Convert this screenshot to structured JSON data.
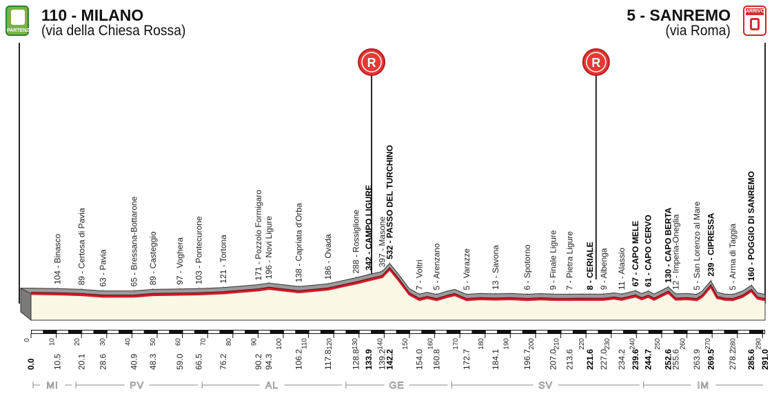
{
  "start": {
    "title": "110 - MILANO",
    "subtitle": "(via della Chiesa Rossa)",
    "badge_label": "PARTENZA"
  },
  "finish": {
    "title": "5 - SANREMO",
    "subtitle": "(via Roma)",
    "badge_label": "ARRIVO"
  },
  "refreshment_label": "R",
  "refreshments_km": [
    135,
    224
  ],
  "total_km": 291.0,
  "km_ticks": [
    0,
    10,
    20,
    30,
    40,
    50,
    60,
    70,
    80,
    90,
    100,
    110,
    120,
    130,
    140,
    150,
    160,
    170,
    180,
    190,
    200,
    210,
    220,
    230,
    240,
    250,
    260,
    270,
    280,
    290
  ],
  "places": [
    {
      "km": 10.5,
      "text": "104 - Binasco",
      "bold": false
    },
    {
      "km": 20.1,
      "text": "89 - Certosa di Pavia",
      "bold": false
    },
    {
      "km": 28.6,
      "text": "63 - Pavia",
      "bold": false
    },
    {
      "km": 40.9,
      "text": "65 - Bressana-Bottarone",
      "bold": false
    },
    {
      "km": 48.3,
      "text": "89 - Casteggio",
      "bold": false
    },
    {
      "km": 59.0,
      "text": "97 - Voghera",
      "bold": false
    },
    {
      "km": 66.5,
      "text": "103 - Pontecurone",
      "bold": false
    },
    {
      "km": 76.2,
      "text": "121 - Tortona",
      "bold": false
    },
    {
      "km": 90.2,
      "text": "171 - Pozzolo Formigaro",
      "bold": false
    },
    {
      "km": 94.3,
      "text": "196 - Novi Ligure",
      "bold": false
    },
    {
      "km": 106.2,
      "text": "138 - Capriata d'Orba",
      "bold": false
    },
    {
      "km": 117.8,
      "text": "186 - Ovada",
      "bold": false
    },
    {
      "km": 128.8,
      "text": "288 - Rossiglione",
      "bold": false
    },
    {
      "km": 133.9,
      "text": "342 - CAMPO LIGURE",
      "bold": true
    },
    {
      "km": 139.2,
      "text": "397 - Masone",
      "bold": false
    },
    {
      "km": 142.2,
      "text": "532 - PASSO DEL TURCHINO",
      "bold": true
    },
    {
      "km": 154.0,
      "text": "7 - Voltri",
      "bold": false
    },
    {
      "km": 160.8,
      "text": "5 - Arenzano",
      "bold": false
    },
    {
      "km": 172.7,
      "text": "5 - Varazze",
      "bold": false
    },
    {
      "km": 184.1,
      "text": "13 - Savona",
      "bold": false
    },
    {
      "km": 196.7,
      "text": "6 - Spotorno",
      "bold": false
    },
    {
      "km": 207.0,
      "text": "9 - Finale Ligure",
      "bold": false
    },
    {
      "km": 213.6,
      "text": "7 - Pietra Ligure",
      "bold": false
    },
    {
      "km": 221.6,
      "text": "8 - CERIALE",
      "bold": true
    },
    {
      "km": 227.0,
      "text": "9 - Albenga",
      "bold": false
    },
    {
      "km": 234.2,
      "text": "11 - Alassio",
      "bold": false
    },
    {
      "km": 239.6,
      "text": "67 - CAPO MELE",
      "bold": true
    },
    {
      "km": 244.7,
      "text": "61 - CAPO CERVO",
      "bold": true
    },
    {
      "km": 252.6,
      "text": "130 - CAPO BERTA",
      "bold": true
    },
    {
      "km": 255.6,
      "text": "12 - Imperia-Oneglia",
      "bold": false
    },
    {
      "km": 263.9,
      "text": "5 - San Lorenzo al Mare",
      "bold": false
    },
    {
      "km": 269.5,
      "text": "239 - CIPRESSA",
      "bold": true
    },
    {
      "km": 278.2,
      "text": "5 - Arma di Taggia",
      "bold": false
    },
    {
      "km": 285.6,
      "text": "160 - POGGIO DI SANREMO",
      "bold": true
    }
  ],
  "distances": [
    {
      "text": "0.0",
      "km": 0,
      "bold": true
    },
    {
      "text": "10.5",
      "km": 10.5,
      "bold": false
    },
    {
      "text": "20.1",
      "km": 20.1,
      "bold": false
    },
    {
      "text": "28.6",
      "km": 28.6,
      "bold": false
    },
    {
      "text": "40.9",
      "km": 40.9,
      "bold": false
    },
    {
      "text": "48.3",
      "km": 48.3,
      "bold": false
    },
    {
      "text": "59.0",
      "km": 59.0,
      "bold": false
    },
    {
      "text": "66.5",
      "km": 66.5,
      "bold": false
    },
    {
      "text": "76.2",
      "km": 76.2,
      "bold": false
    },
    {
      "text": "90.2",
      "km": 90.2,
      "bold": false
    },
    {
      "text": "94.3",
      "km": 94.3,
      "bold": false
    },
    {
      "text": "106.2",
      "km": 106.2,
      "bold": false
    },
    {
      "text": "117.8",
      "km": 117.8,
      "bold": false
    },
    {
      "text": "128.8",
      "km": 128.8,
      "bold": false
    },
    {
      "text": "133.9",
      "km": 133.9,
      "bold": true
    },
    {
      "text": "139.2",
      "km": 139.2,
      "bold": false
    },
    {
      "text": "142.2",
      "km": 142.2,
      "bold": true
    },
    {
      "text": "154.0",
      "km": 154.0,
      "bold": false
    },
    {
      "text": "160.8",
      "km": 160.8,
      "bold": false
    },
    {
      "text": "172.7",
      "km": 172.7,
      "bold": false
    },
    {
      "text": "184.1",
      "km": 184.1,
      "bold": false
    },
    {
      "text": "196.7",
      "km": 196.7,
      "bold": false
    },
    {
      "text": "207.0",
      "km": 207.0,
      "bold": false
    },
    {
      "text": "213.6",
      "km": 213.6,
      "bold": false
    },
    {
      "text": "221.6",
      "km": 221.6,
      "bold": true
    },
    {
      "text": "227.0",
      "km": 227.0,
      "bold": false
    },
    {
      "text": "234.2",
      "km": 234.2,
      "bold": false
    },
    {
      "text": "239.6",
      "km": 239.6,
      "bold": true
    },
    {
      "text": "244.7",
      "km": 244.7,
      "bold": true
    },
    {
      "text": "252.6",
      "km": 252.6,
      "bold": true
    },
    {
      "text": "255.6",
      "km": 255.6,
      "bold": false
    },
    {
      "text": "263.9",
      "km": 263.9,
      "bold": false
    },
    {
      "text": "269.5",
      "km": 269.5,
      "bold": true
    },
    {
      "text": "278.2",
      "km": 278.2,
      "bold": false
    },
    {
      "text": "285.6",
      "km": 285.6,
      "bold": true
    },
    {
      "text": "291.0",
      "km": 291.0,
      "bold": true
    }
  ],
  "provinces": [
    {
      "code": "MI",
      "from": 0,
      "to": 17
    },
    {
      "code": "PV",
      "from": 17,
      "to": 67
    },
    {
      "code": "AL",
      "from": 67,
      "to": 124
    },
    {
      "code": "GE",
      "from": 124,
      "to": 166
    },
    {
      "code": "SV",
      "from": 166,
      "to": 242
    },
    {
      "code": "IM",
      "from": 242,
      "to": 291
    }
  ],
  "elevation_profile_km_m": [
    [
      0,
      110
    ],
    [
      10.5,
      104
    ],
    [
      20.1,
      89
    ],
    [
      28.6,
      63
    ],
    [
      40.9,
      65
    ],
    [
      48.3,
      89
    ],
    [
      59,
      97
    ],
    [
      66.5,
      103
    ],
    [
      76.2,
      121
    ],
    [
      90.2,
      171
    ],
    [
      94.3,
      196
    ],
    [
      106.2,
      138
    ],
    [
      117.8,
      186
    ],
    [
      128.8,
      288
    ],
    [
      133.9,
      342
    ],
    [
      139.2,
      397
    ],
    [
      142.2,
      532
    ],
    [
      146,
      330
    ],
    [
      150,
      100
    ],
    [
      154,
      7
    ],
    [
      157,
      40
    ],
    [
      160.8,
      5
    ],
    [
      165,
      60
    ],
    [
      168,
      90
    ],
    [
      172.7,
      5
    ],
    [
      178,
      20
    ],
    [
      184.1,
      13
    ],
    [
      190,
      20
    ],
    [
      196.7,
      6
    ],
    [
      202,
      18
    ],
    [
      207,
      9
    ],
    [
      213.6,
      7
    ],
    [
      218,
      10
    ],
    [
      221.6,
      8
    ],
    [
      227,
      9
    ],
    [
      231,
      30
    ],
    [
      234.2,
      11
    ],
    [
      239.6,
      67
    ],
    [
      242,
      20
    ],
    [
      244.7,
      61
    ],
    [
      247,
      10
    ],
    [
      252.6,
      130
    ],
    [
      255.6,
      12
    ],
    [
      260,
      20
    ],
    [
      263.9,
      5
    ],
    [
      266,
      60
    ],
    [
      269.5,
      239
    ],
    [
      272,
      40
    ],
    [
      275,
      10
    ],
    [
      278.2,
      5
    ],
    [
      282,
      60
    ],
    [
      285.6,
      160
    ],
    [
      288,
      30
    ],
    [
      291,
      5
    ]
  ],
  "colors": {
    "route_red": "#d7192a",
    "profile_grey": "#9a9a9a",
    "ground": "#fbf8e6"
  }
}
